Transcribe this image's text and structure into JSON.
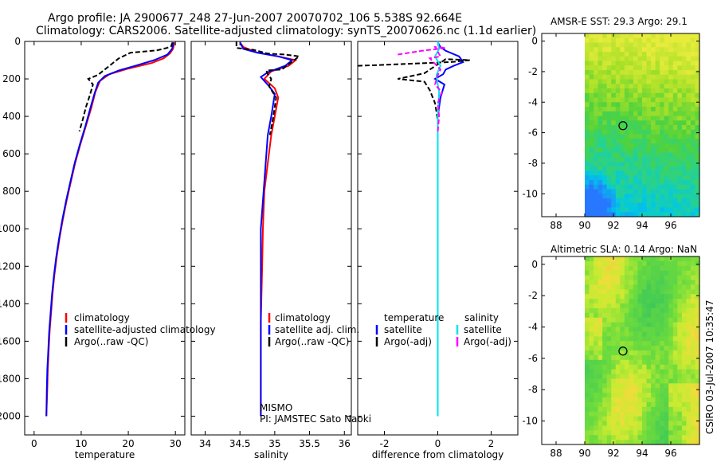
{
  "figure": {
    "title_line1": "Argo profile: JA 2900677_248 27-Jun-2007 20070702_106 5.538S 92.664E",
    "title_line2": "Climatology: CARS2006. Satellite-adjusted climatology: synTS_20070626.nc (1.1d earlier)",
    "footer": "CSIRO 03-Jul-2007 10:35:47",
    "note_line1": "MISMO",
    "note_line2": "PI: JAMSTEC Sato Naoki"
  },
  "colors": {
    "climatology": "#ff0000",
    "satellite": "#0000ff",
    "argo": "#000000",
    "salinity_satellite": "#00e5ee",
    "salinity_argo": "#ff00ff",
    "circle": "#000000"
  },
  "chart_data": [
    {
      "type": "line",
      "name": "temperature-profile",
      "xlabel": "temperature",
      "ylabel": "",
      "xlim": [
        -2,
        32
      ],
      "ylim": [
        2100,
        0
      ],
      "xticks": [
        0,
        10,
        20,
        30
      ],
      "yticks": [
        0,
        200,
        400,
        600,
        800,
        1000,
        1200,
        1400,
        1600,
        1800,
        2000
      ],
      "legend": [
        "climatology",
        "satellite-adjusted climatology",
        "Argo(..raw -QC)"
      ],
      "legend_position": "lower-middle",
      "series": [
        {
          "name": "climatology",
          "color": "#ff0000",
          "style": "solid",
          "points": [
            [
              29.8,
              5
            ],
            [
              29.5,
              40
            ],
            [
              28.8,
              65
            ],
            [
              27.5,
              90
            ],
            [
              25,
              115
            ],
            [
              20,
              145
            ],
            [
              16,
              175
            ],
            [
              14,
              210
            ],
            [
              13,
              270
            ],
            [
              12.2,
              350
            ],
            [
              11,
              450
            ],
            [
              9.8,
              550
            ],
            [
              8.7,
              650
            ],
            [
              7.8,
              750
            ],
            [
              6.9,
              850
            ],
            [
              6.1,
              950
            ],
            [
              5.4,
              1050
            ],
            [
              4.8,
              1150
            ],
            [
              4.3,
              1250
            ],
            [
              3.9,
              1350
            ],
            [
              3.6,
              1450
            ],
            [
              3.3,
              1550
            ],
            [
              3.1,
              1650
            ],
            [
              2.9,
              1750
            ],
            [
              2.8,
              1850
            ],
            [
              2.6,
              2000
            ]
          ]
        },
        {
          "name": "satellite-adjusted climatology",
          "color": "#0000ff",
          "style": "solid",
          "points": [
            [
              29.6,
              5
            ],
            [
              29.3,
              40
            ],
            [
              28.3,
              70
            ],
            [
              25.5,
              100
            ],
            [
              21.5,
              130
            ],
            [
              18,
              155
            ],
            [
              15,
              185
            ],
            [
              13.6,
              220
            ],
            [
              12.8,
              280
            ],
            [
              12,
              350
            ],
            [
              10.9,
              450
            ],
            [
              9.7,
              550
            ],
            [
              8.6,
              650
            ],
            [
              7.7,
              750
            ],
            [
              6.8,
              850
            ],
            [
              6,
              950
            ],
            [
              5.3,
              1050
            ],
            [
              4.7,
              1150
            ],
            [
              4.2,
              1250
            ],
            [
              3.8,
              1350
            ],
            [
              3.5,
              1450
            ],
            [
              3.2,
              1550
            ],
            [
              3,
              1650
            ],
            [
              2.8,
              1750
            ],
            [
              2.7,
              1850
            ],
            [
              2.6,
              2000
            ]
          ]
        },
        {
          "name": "Argo(..raw -QC)",
          "color": "#000000",
          "style": "dashed",
          "points": [
            [
              29.4,
              5
            ],
            [
              29.1,
              25
            ],
            [
              28.2,
              35
            ],
            [
              26,
              48
            ],
            [
              20.5,
              60
            ],
            [
              18,
              90
            ],
            [
              15,
              150
            ],
            [
              13.5,
              180
            ],
            [
              11.5,
              200
            ],
            [
              12.5,
              230
            ],
            [
              11.8,
              290
            ],
            [
              11,
              350
            ],
            [
              10.3,
              420
            ],
            [
              9.6,
              480
            ]
          ]
        }
      ]
    },
    {
      "type": "line",
      "name": "salinity-profile",
      "xlabel": "salinity",
      "ylabel": "",
      "xlim": [
        33.8,
        36.1
      ],
      "ylim": [
        2100,
        0
      ],
      "xticks": [
        34,
        34.5,
        35,
        35.5,
        36
      ],
      "legend": [
        "climatology",
        "satellite adj. clim.",
        "Argo(..raw -QC)"
      ],
      "legend_position": "lower-middle",
      "series": [
        {
          "name": "climatology",
          "color": "#ff0000",
          "style": "solid",
          "points": [
            [
              34.5,
              5
            ],
            [
              34.55,
              30
            ],
            [
              34.75,
              60
            ],
            [
              35.05,
              80
            ],
            [
              35.3,
              100
            ],
            [
              35.2,
              130
            ],
            [
              34.95,
              160
            ],
            [
              34.85,
              200
            ],
            [
              35.0,
              250
            ],
            [
              35.05,
              300
            ],
            [
              35.0,
              400
            ],
            [
              34.95,
              500
            ],
            [
              34.9,
              650
            ],
            [
              34.85,
              800
            ],
            [
              34.83,
              1000
            ],
            [
              34.82,
              1200
            ],
            [
              34.8,
              1500
            ],
            [
              34.8,
              2000
            ]
          ]
        },
        {
          "name": "satellite adj. clim.",
          "color": "#0000ff",
          "style": "solid",
          "points": [
            [
              34.5,
              5
            ],
            [
              34.55,
              40
            ],
            [
              34.75,
              60
            ],
            [
              35.05,
              80
            ],
            [
              35.25,
              100
            ],
            [
              35.15,
              130
            ],
            [
              34.9,
              165
            ],
            [
              34.8,
              190
            ],
            [
              34.92,
              240
            ],
            [
              35.0,
              280
            ],
            [
              34.95,
              400
            ],
            [
              34.9,
              500
            ],
            [
              34.87,
              650
            ],
            [
              34.84,
              800
            ],
            [
              34.8,
              1000
            ],
            [
              34.8,
              1200
            ],
            [
              34.8,
              1500
            ],
            [
              34.8,
              2000
            ]
          ]
        },
        {
          "name": "Argo(..raw -QC)",
          "color": "#000000",
          "style": "dashed",
          "points": [
            [
              34.45,
              0
            ],
            [
              34.45,
              35
            ],
            [
              34.7,
              45
            ],
            [
              34.9,
              65
            ],
            [
              35.15,
              70
            ],
            [
              35.35,
              80
            ],
            [
              35.1,
              150
            ],
            [
              34.88,
              155
            ],
            [
              34.9,
              175
            ],
            [
              34.95,
              200
            ],
            [
              34.92,
              240
            ],
            [
              34.97,
              270
            ],
            [
              35.02,
              300
            ],
            [
              34.98,
              400
            ],
            [
              34.93,
              500
            ]
          ]
        }
      ]
    },
    {
      "type": "line",
      "name": "difference-profile",
      "xlabel": "difference from climatology",
      "ylabel": "",
      "xlim": [
        -3,
        3
      ],
      "ylim": [
        2100,
        0
      ],
      "xticks": [
        -2,
        0,
        2
      ],
      "legend": [
        "temperature",
        "satellite",
        "Argo(-adj)",
        "salinity",
        "satellite",
        "Argo(-adj)"
      ],
      "legend_position": "lower-middle",
      "series": [
        {
          "name": "temperature satellite",
          "color": "#0000ff",
          "style": "solid",
          "points": [
            [
              0,
              5
            ],
            [
              0.1,
              30
            ],
            [
              0.3,
              50
            ],
            [
              0.8,
              80
            ],
            [
              0.95,
              110
            ],
            [
              0.6,
              130
            ],
            [
              0.3,
              150
            ],
            [
              0.2,
              175
            ],
            [
              -0.1,
              200
            ],
            [
              0.25,
              230
            ],
            [
              0.1,
              300
            ],
            [
              0,
              400
            ],
            [
              0,
              600
            ],
            [
              0,
              1000
            ],
            [
              0,
              1500
            ],
            [
              0,
              2000
            ]
          ]
        },
        {
          "name": "temperature Argo(-adj)",
          "color": "#000000",
          "style": "dashed",
          "points": [
            [
              -3,
              130
            ],
            [
              -2,
              125
            ],
            [
              0.5,
              110
            ],
            [
              1.2,
              100
            ],
            [
              0.3,
              95
            ],
            [
              -0.3,
              150
            ],
            [
              -0.5,
              170
            ],
            [
              -1.5,
              200
            ],
            [
              -0.5,
              215
            ],
            [
              -0.3,
              260
            ],
            [
              -0.1,
              330
            ],
            [
              0,
              420
            ],
            [
              0,
              480
            ]
          ]
        },
        {
          "name": "salinity satellite",
          "color": "#00e5ee",
          "style": "solid",
          "points": [
            [
              0,
              0
            ],
            [
              0.05,
              40
            ],
            [
              -0.1,
              80
            ],
            [
              0.1,
              130
            ],
            [
              -0.05,
              180
            ],
            [
              0,
              230
            ],
            [
              0.05,
              270
            ],
            [
              0,
              400
            ],
            [
              0,
              600
            ],
            [
              0,
              1000
            ],
            [
              0,
              1500
            ],
            [
              0,
              2000
            ]
          ]
        },
        {
          "name": "salinity Argo(-adj)",
          "color": "#ff00ff",
          "style": "dashed",
          "points": [
            [
              -1.5,
              70
            ],
            [
              -0.6,
              50
            ],
            [
              0.3,
              35
            ],
            [
              -0.1,
              30
            ],
            [
              0.1,
              80
            ],
            [
              -0.3,
              90
            ],
            [
              0.1,
              150
            ],
            [
              0,
              180
            ],
            [
              -0.1,
              230
            ],
            [
              0.15,
              270
            ],
            [
              0,
              330
            ],
            [
              0.05,
              400
            ],
            [
              0,
              480
            ]
          ]
        }
      ]
    },
    {
      "type": "heatmap",
      "name": "amsr-sst-map",
      "title": "AMSR-E SST: 29.3 Argo: 29.1",
      "xlim": [
        87,
        98
      ],
      "ylim": [
        -11.5,
        0.5
      ],
      "xticks": [
        88,
        90,
        92,
        94,
        96
      ],
      "yticks": [
        0,
        -2,
        -4,
        -6,
        -8,
        -10
      ],
      "data_extent_lon": [
        90,
        98
      ],
      "argo_position": {
        "lon": 92.664,
        "lat": -5.538
      }
    },
    {
      "type": "heatmap",
      "name": "altimetric-sla-map",
      "title": "Altimetric SLA: 0.14 Argo: NaN",
      "xlim": [
        87,
        98
      ],
      "ylim": [
        -11.5,
        0.5
      ],
      "xticks": [
        88,
        90,
        92,
        94,
        96
      ],
      "yticks": [
        0,
        -2,
        -4,
        -6,
        -8,
        -10
      ],
      "data_extent_lon": [
        90,
        98
      ],
      "argo_position": {
        "lon": 92.664,
        "lat": -5.538
      }
    }
  ]
}
